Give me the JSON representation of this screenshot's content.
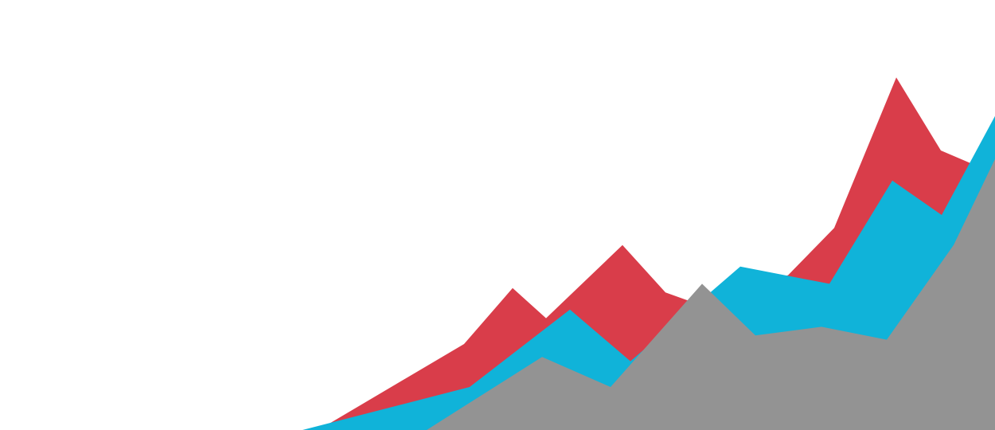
{
  "chart_data": {
    "type": "area",
    "grid": false,
    "legend": "none",
    "series": [
      {
        "color": "#d93d4a",
        "points": [
          [
            0,
            0
          ],
          [
            400,
            0
          ],
          [
            583,
            20
          ],
          [
            644,
            33
          ],
          [
            686,
            26
          ],
          [
            782,
            43
          ],
          [
            836,
            32
          ],
          [
            866,
            30
          ],
          [
            990,
            36
          ],
          [
            1048,
            47
          ],
          [
            1126,
            82
          ],
          [
            1182,
            65
          ],
          [
            1220,
            62
          ],
          [
            1250,
            62
          ]
        ]
      },
      {
        "color": "#10b3d9",
        "points": [
          [
            0,
            0
          ],
          [
            380,
            0
          ],
          [
            590,
            10
          ],
          [
            716,
            28
          ],
          [
            792,
            16
          ],
          [
            930,
            38
          ],
          [
            1042,
            34
          ],
          [
            1121,
            58
          ],
          [
            1183,
            50
          ],
          [
            1250,
            73
          ]
        ]
      },
      {
        "color": "#939393",
        "points": [
          [
            0,
            0
          ],
          [
            536,
            0
          ],
          [
            681,
            17
          ],
          [
            767,
            10
          ],
          [
            882,
            34
          ],
          [
            949,
            22
          ],
          [
            1032,
            24
          ],
          [
            1114,
            21
          ],
          [
            1198,
            43
          ],
          [
            1250,
            63
          ]
        ]
      }
    ]
  }
}
